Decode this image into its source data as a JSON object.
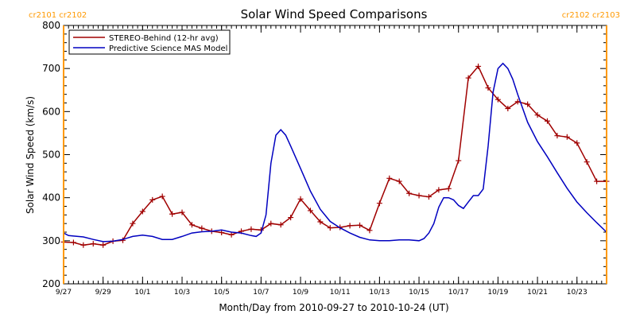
{
  "chart_data": {
    "type": "line",
    "title": "Solar Wind Speed Comparisons",
    "xlabel": "Month/Day from 2010-09-27 to 2010-10-24 (UT)",
    "ylabel": "Solar Wind Speed (km/s)",
    "xlim": [
      "2010-09-27",
      "2010-10-24T12:00"
    ],
    "ylim": [
      200,
      800
    ],
    "yticks": [
      200,
      300,
      400,
      500,
      600,
      700,
      800
    ],
    "xticks": [
      {
        "date": "2010-09-27",
        "label": "9/27"
      },
      {
        "date": "2010-09-29",
        "label": "9/29"
      },
      {
        "date": "2010-10-01",
        "label": "10/1"
      },
      {
        "date": "2010-10-03",
        "label": "10/3"
      },
      {
        "date": "2010-10-05",
        "label": "10/5"
      },
      {
        "date": "2010-10-07",
        "label": "10/7"
      },
      {
        "date": "2010-10-09",
        "label": "10/9"
      },
      {
        "date": "2010-10-11",
        "label": "10/11"
      },
      {
        "date": "2010-10-13",
        "label": "10/13"
      },
      {
        "date": "2010-10-15",
        "label": "10/15"
      },
      {
        "date": "2010-10-17",
        "label": "10/17"
      },
      {
        "date": "2010-10-19",
        "label": "10/19"
      },
      {
        "date": "2010-10-21",
        "label": "10/21"
      },
      {
        "date": "2010-10-23",
        "label": "10/23"
      }
    ],
    "legend_position": "top-left",
    "carrington_markers": [
      {
        "date": "2010-09-27",
        "label": "cr2101 cr2102",
        "side": "left"
      },
      {
        "date": "2010-10-24T12:00",
        "label": "cr2102 cr2103",
        "side": "right"
      }
    ],
    "series": [
      {
        "name": "STEREO-Behind (12-hr avg)",
        "color": "#a00000",
        "marker": "plus",
        "x": [
          "2010-09-27",
          "2010-09-27T12:00",
          "2010-09-28",
          "2010-09-28T12:00",
          "2010-09-29",
          "2010-09-29T12:00",
          "2010-09-30",
          "2010-09-30T12:00",
          "2010-10-01",
          "2010-10-01T12:00",
          "2010-10-02",
          "2010-10-02T12:00",
          "2010-10-03",
          "2010-10-03T12:00",
          "2010-10-04",
          "2010-10-04T12:00",
          "2010-10-05",
          "2010-10-05T12:00",
          "2010-10-06",
          "2010-10-06T12:00",
          "2010-10-07",
          "2010-10-07T12:00",
          "2010-10-08",
          "2010-10-08T12:00",
          "2010-10-09",
          "2010-10-09T12:00",
          "2010-10-10",
          "2010-10-10T12:00",
          "2010-10-11",
          "2010-10-11T12:00",
          "2010-10-12",
          "2010-10-12T12:00",
          "2010-10-13",
          "2010-10-13T12:00",
          "2010-10-14",
          "2010-10-14T12:00",
          "2010-10-15",
          "2010-10-15T12:00",
          "2010-10-16",
          "2010-10-16T12:00",
          "2010-10-17",
          "2010-10-17T12:00",
          "2010-10-18",
          "2010-10-18T12:00",
          "2010-10-19",
          "2010-10-19T12:00",
          "2010-10-20",
          "2010-10-20T12:00",
          "2010-10-21",
          "2010-10-21T12:00",
          "2010-10-22",
          "2010-10-22T12:00",
          "2010-10-23",
          "2010-10-23T12:00",
          "2010-10-24",
          "2010-10-24T12:00"
        ],
        "values": [
          297,
          296,
          290,
          293,
          290,
          299,
          301,
          340,
          368,
          395,
          403,
          362,
          366,
          337,
          329,
          322,
          319,
          314,
          322,
          327,
          325,
          340,
          337,
          354,
          397,
          370,
          344,
          330,
          331,
          335,
          336,
          324,
          387,
          445,
          438,
          410,
          405,
          402,
          418,
          421,
          486,
          678,
          705,
          655,
          628,
          607,
          623,
          617,
          592,
          578,
          544,
          541,
          527,
          483,
          438,
          438
        ]
      },
      {
        "name": "Predictive Science MAS Model",
        "color": "#0000c0",
        "marker": "none",
        "x": [
          "2010-09-27",
          "2010-09-27T06:00",
          "2010-09-27T12:00",
          "2010-09-28",
          "2010-09-28T12:00",
          "2010-09-29",
          "2010-09-29T12:00",
          "2010-09-30",
          "2010-09-30T12:00",
          "2010-10-01",
          "2010-10-01T12:00",
          "2010-10-02",
          "2010-10-02T12:00",
          "2010-10-03",
          "2010-10-03T12:00",
          "2010-10-04",
          "2010-10-04T12:00",
          "2010-10-05",
          "2010-10-05T12:00",
          "2010-10-06",
          "2010-10-06T12:00",
          "2010-10-06T18:00",
          "2010-10-07",
          "2010-10-07T06:00",
          "2010-10-07T12:00",
          "2010-10-07T18:00",
          "2010-10-08",
          "2010-10-08T06:00",
          "2010-10-08T12:00",
          "2010-10-09",
          "2010-10-09T12:00",
          "2010-10-10",
          "2010-10-10T12:00",
          "2010-10-11",
          "2010-10-11T12:00",
          "2010-10-12",
          "2010-10-12T12:00",
          "2010-10-13",
          "2010-10-13T12:00",
          "2010-10-14",
          "2010-10-14T12:00",
          "2010-10-15",
          "2010-10-15T06:00",
          "2010-10-15T12:00",
          "2010-10-15T18:00",
          "2010-10-16",
          "2010-10-16T06:00",
          "2010-10-16T12:00",
          "2010-10-16T18:00",
          "2010-10-17",
          "2010-10-17T06:00",
          "2010-10-17T12:00",
          "2010-10-17T18:00",
          "2010-10-18",
          "2010-10-18T06:00",
          "2010-10-18T12:00",
          "2010-10-18T18:00",
          "2010-10-19",
          "2010-10-19T06:00",
          "2010-10-19T12:00",
          "2010-10-19T18:00",
          "2010-10-20",
          "2010-10-20T12:00",
          "2010-10-21",
          "2010-10-21T12:00",
          "2010-10-22",
          "2010-10-22T12:00",
          "2010-10-23",
          "2010-10-23T12:00",
          "2010-10-24",
          "2010-10-24T12:00"
        ],
        "values": [
          318,
          312,
          311,
          309,
          303,
          298,
          299,
          303,
          310,
          313,
          310,
          303,
          303,
          310,
          318,
          321,
          322,
          325,
          320,
          318,
          312,
          310,
          318,
          360,
          480,
          545,
          558,
          545,
          520,
          468,
          415,
          373,
          345,
          330,
          318,
          308,
          302,
          300,
          300,
          302,
          302,
          300,
          305,
          318,
          340,
          378,
          400,
          400,
          395,
          382,
          375,
          390,
          405,
          405,
          420,
          520,
          645,
          700,
          712,
          700,
          675,
          640,
          575,
          530,
          495,
          458,
          422,
          390,
          365,
          342,
          320
        ]
      }
    ]
  }
}
